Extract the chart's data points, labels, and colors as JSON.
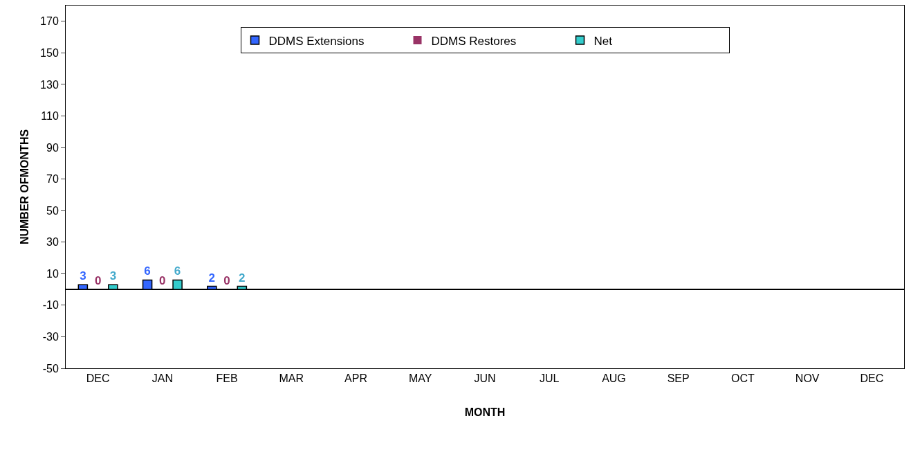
{
  "chart_data": {
    "type": "bar",
    "xlabel": "MONTH",
    "ylabel": "NUMBER OFMONTHS",
    "categories": [
      "DEC",
      "JAN",
      "FEB",
      "MAR",
      "APR",
      "MAY",
      "JUN",
      "JUL",
      "AUG",
      "SEP",
      "OCT",
      "NOV",
      "DEC"
    ],
    "series": [
      {
        "name": "DDMS Extensions",
        "color": "#3366ff",
        "values": [
          3,
          6,
          2,
          null,
          null,
          null,
          null,
          null,
          null,
          null,
          null,
          null,
          null
        ]
      },
      {
        "name": "DDMS Restores",
        "color": "#993366",
        "values": [
          0,
          0,
          0,
          null,
          null,
          null,
          null,
          null,
          null,
          null,
          null,
          null,
          null
        ]
      },
      {
        "name": "Net",
        "color": "#33cccc",
        "values": [
          3,
          6,
          2,
          null,
          null,
          null,
          null,
          null,
          null,
          null,
          null,
          null,
          null
        ]
      }
    ],
    "ylim": [
      -50,
      180
    ],
    "yticks": [
      -50,
      -30,
      -10,
      10,
      30,
      50,
      70,
      90,
      110,
      130,
      150,
      170
    ],
    "data_labels": true,
    "grid": false,
    "legend": "top"
  }
}
